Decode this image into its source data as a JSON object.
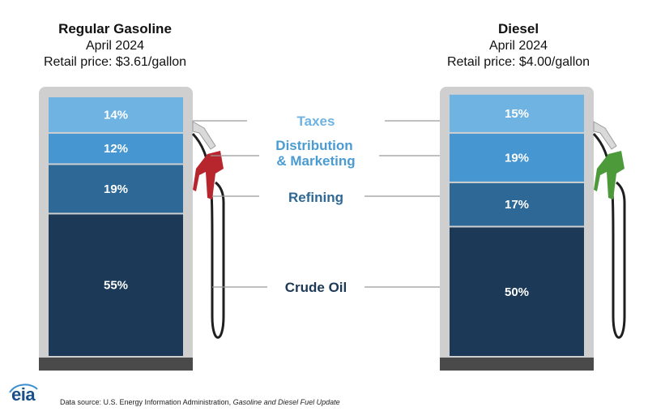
{
  "fuels": [
    {
      "name": "Regular Gasoline",
      "date": "April 2024",
      "price": "Retail price: $3.61/gallon",
      "nozzle_color": "#b8262d"
    },
    {
      "name": "Diesel",
      "date": "April 2024",
      "price": "Retail price: $4.00/gallon",
      "nozzle_color": "#4c9a3a"
    }
  ],
  "chart_data": {
    "type": "bar",
    "stacked": true,
    "categories": [
      "Regular Gasoline",
      "Diesel"
    ],
    "series": [
      {
        "name": "Crude Oil",
        "values": [
          55,
          50
        ],
        "color": "#1c3a57",
        "label_color": "#1c3a57"
      },
      {
        "name": "Refining",
        "values": [
          19,
          17
        ],
        "color": "#2d6896",
        "label_color": "#2d6896"
      },
      {
        "name": "Distribution & Marketing",
        "values": [
          12,
          19
        ],
        "color": "#4696d2",
        "label_color": "#4b9bd3"
      },
      {
        "name": "Taxes",
        "values": [
          14,
          15
        ],
        "color": "#6fb3e2",
        "label_color": "#6fb3e2"
      }
    ],
    "value_labels": [
      [
        "55%",
        "19%",
        "12%",
        "14%"
      ],
      [
        "50%",
        "17%",
        "19%",
        "15%"
      ]
    ],
    "category_labels": {
      "taxes": "Taxes",
      "distribution_line1": "Distribution",
      "distribution_line2": "& Marketing",
      "refining": "Refining",
      "crude": "Crude Oil"
    },
    "ylim": [
      0,
      100
    ]
  },
  "footer": {
    "logo": "eia",
    "source_prefix": "Data source: U.S. Energy Information Administration, ",
    "source_name": "Gasoline and Diesel Fuel Update"
  }
}
